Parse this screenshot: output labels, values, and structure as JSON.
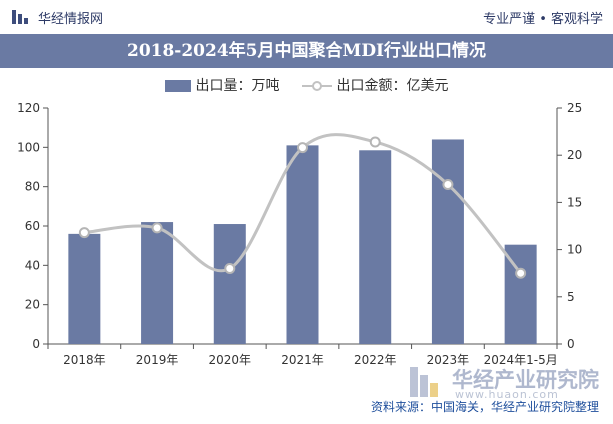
{
  "header": {
    "site_name": "华经情报网",
    "slogan": "专业严谨 • 客观科学"
  },
  "footer": {
    "source": "资料来源：中国海关，华经产业研究院整理"
  },
  "watermark": {
    "name": "华经产业研究院",
    "url": "www.huaon.com"
  },
  "colors": {
    "bar": "#6a7aa3",
    "line": "#c2c2c2",
    "title_bg": "#6a7aa3",
    "brand": "#2d3a66"
  },
  "chart_data": {
    "type": "bar",
    "title": "2018-2024年5月中国聚合MDI行业出口情况",
    "categories": [
      "2018年",
      "2019年",
      "2020年",
      "2021年",
      "2022年",
      "2023年",
      "2024年1-5月"
    ],
    "series": [
      {
        "name": "出口量：万吨",
        "type": "bar",
        "axis": "left",
        "values": [
          56,
          62,
          61,
          101,
          98.5,
          104,
          50.5
        ]
      },
      {
        "name": "出口金额：亿美元",
        "type": "line",
        "axis": "right",
        "smooth": true,
        "values": [
          11.8,
          12.3,
          8.0,
          20.8,
          21.4,
          16.9,
          7.5
        ]
      }
    ],
    "y_left": {
      "min": 0,
      "max": 120,
      "ticks": [
        0,
        20,
        40,
        60,
        80,
        100,
        120
      ]
    },
    "y_right": {
      "min": 0,
      "max": 25,
      "ticks": [
        0,
        5,
        10,
        15,
        20,
        25
      ]
    },
    "legend_position": "top-center",
    "grid": false
  }
}
